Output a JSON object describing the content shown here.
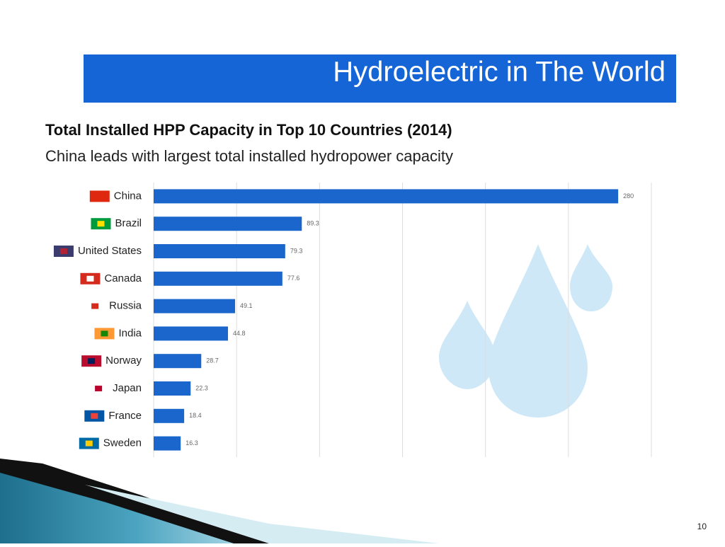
{
  "slide_title": "Hydroelectric in The World",
  "slide_number": "10",
  "chart_data": {
    "type": "hbar",
    "title": "Total Installed HPP Capacity in Top 10 Countries (2014)",
    "subtitle": "China leads with largest total installed hydropower capacity",
    "categories": [
      "China",
      "Brazil",
      "United States",
      "Canada",
      "Russia",
      "India",
      "Norway",
      "Japan",
      "France",
      "Sweden"
    ],
    "values": [
      280,
      89.3,
      79.3,
      77.6,
      49.1,
      44.8,
      28.7,
      22.3,
      18.4,
      16.3
    ],
    "color": "#1a66cc",
    "xlim": [
      0,
      300
    ],
    "xticks": [
      0,
      50,
      100,
      150,
      200,
      250,
      300
    ],
    "grid": true
  }
}
